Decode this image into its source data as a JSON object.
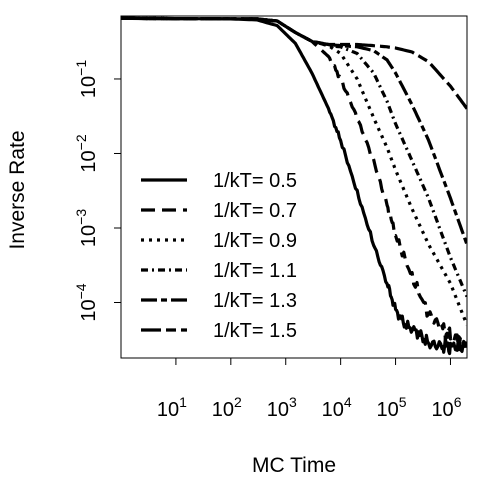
{
  "chart_data": {
    "type": "line",
    "title": "",
    "xlabel": "MC Time",
    "ylabel": "Inverse Rate",
    "x_scale": "log",
    "y_scale": "log",
    "xlim": [
      1,
      2000000
    ],
    "ylim": [
      1.8e-05,
      0.7
    ],
    "grid": false,
    "legend_position": "bottom-left",
    "x_ticks": [
      {
        "base": "10",
        "exp": "1",
        "value": 10
      },
      {
        "base": "10",
        "exp": "2",
        "value": 100
      },
      {
        "base": "10",
        "exp": "3",
        "value": 1000
      },
      {
        "base": "10",
        "exp": "4",
        "value": 10000
      },
      {
        "base": "10",
        "exp": "5",
        "value": 100000
      },
      {
        "base": "10",
        "exp": "6",
        "value": 1000000
      }
    ],
    "y_ticks": [
      {
        "base": "10",
        "exp": "−1",
        "value": 0.1
      },
      {
        "base": "10",
        "exp": "−2",
        "value": 0.01
      },
      {
        "base": "10",
        "exp": "−3",
        "value": 0.001
      },
      {
        "base": "10",
        "exp": "−4",
        "value": 0.0001
      }
    ],
    "series": [
      {
        "name": "1/kT= 0.5",
        "dash": "solid",
        "noisy": true,
        "x": [
          1,
          100,
          300,
          700,
          1500,
          3000,
          6000,
          10000,
          20000,
          40000,
          70000,
          100000,
          150000,
          250000,
          400000,
          700000,
          1000000,
          2000000
        ],
        "y": [
          0.65,
          0.64,
          0.62,
          0.52,
          0.3,
          0.12,
          0.04,
          0.015,
          0.003,
          0.0006,
          0.00018,
          8e-05,
          5e-05,
          4e-05,
          2.8e-05,
          2.6e-05,
          2.6e-05,
          2.6e-05
        ]
      },
      {
        "name": "1/kT= 0.7",
        "dash": "long-dash",
        "noisy": true,
        "x": [
          1,
          300,
          700,
          1500,
          3000,
          6000,
          10000,
          20000,
          40000,
          70000,
          100000,
          200000,
          400000,
          700000,
          1000000,
          2000000
        ],
        "y": [
          0.65,
          0.64,
          0.6,
          0.42,
          0.32,
          0.2,
          0.1,
          0.03,
          0.008,
          0.002,
          0.0008,
          0.00022,
          7e-05,
          4.5e-05,
          3.5e-05,
          2.8e-05
        ]
      },
      {
        "name": "1/kT= 0.9",
        "dash": "dotted",
        "noisy": false,
        "x": [
          1,
          300,
          700,
          1500,
          3000,
          6000,
          10000,
          20000,
          40000,
          70000,
          100000,
          200000,
          400000,
          1000000,
          2000000
        ],
        "y": [
          0.65,
          0.64,
          0.6,
          0.42,
          0.32,
          0.28,
          0.22,
          0.1,
          0.03,
          0.012,
          0.006,
          0.0018,
          0.0006,
          0.00018,
          5e-05
        ]
      },
      {
        "name": "1/kT= 1.1",
        "dash": "dash-dot",
        "noisy": false,
        "x": [
          1,
          300,
          700,
          1500,
          3000,
          6000,
          10000,
          20000,
          40000,
          70000,
          100000,
          200000,
          400000,
          1000000,
          2000000
        ],
        "y": [
          0.65,
          0.64,
          0.6,
          0.42,
          0.32,
          0.28,
          0.27,
          0.22,
          0.12,
          0.05,
          0.025,
          0.008,
          0.0025,
          0.0004,
          0.00012
        ]
      },
      {
        "name": "1/kT= 1.3",
        "dash": "long-short",
        "noisy": false,
        "x": [
          1,
          300,
          700,
          1500,
          3000,
          6000,
          10000,
          20000,
          40000,
          70000,
          100000,
          200000,
          400000,
          1000000,
          2000000
        ],
        "y": [
          0.65,
          0.64,
          0.6,
          0.42,
          0.32,
          0.29,
          0.28,
          0.27,
          0.24,
          0.18,
          0.12,
          0.045,
          0.015,
          0.0025,
          0.0006
        ]
      },
      {
        "name": "1/kT= 1.5",
        "dash": "two-dash",
        "noisy": false,
        "x": [
          1,
          300,
          700,
          1500,
          3000,
          6000,
          10000,
          20000,
          40000,
          70000,
          100000,
          200000,
          400000,
          1000000,
          2000000
        ],
        "y": [
          0.65,
          0.64,
          0.6,
          0.42,
          0.32,
          0.29,
          0.29,
          0.29,
          0.28,
          0.27,
          0.26,
          0.23,
          0.17,
          0.08,
          0.04
        ]
      }
    ]
  }
}
